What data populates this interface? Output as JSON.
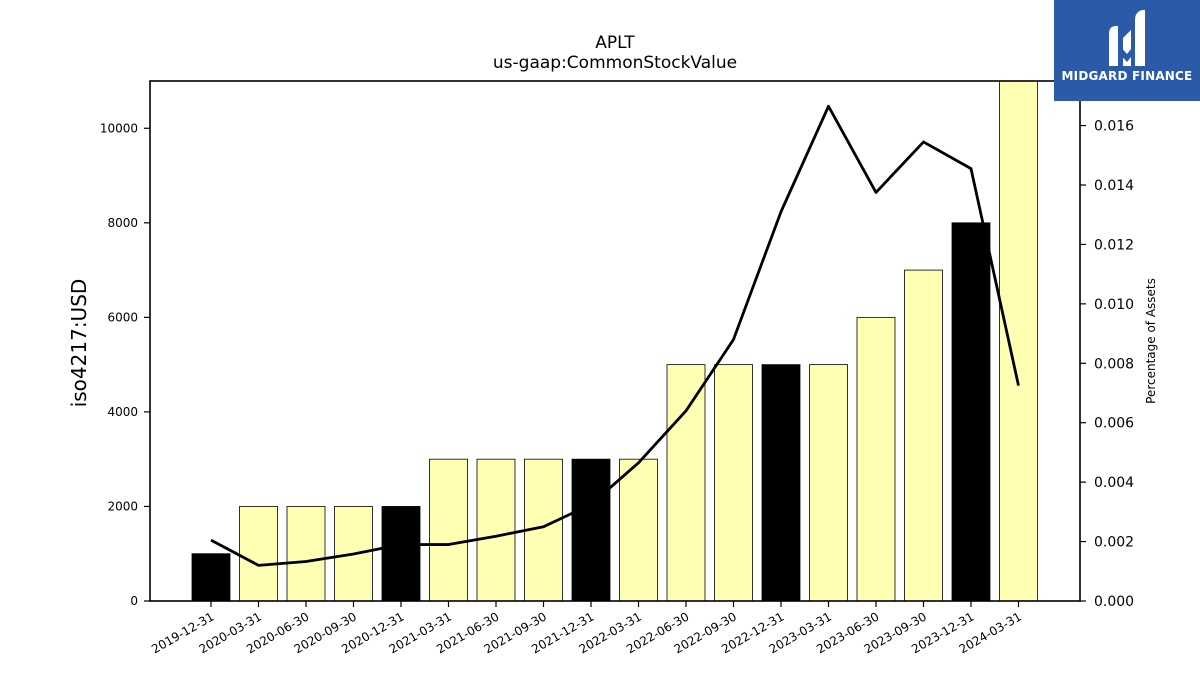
{
  "brand": {
    "name": "MIDGARD FINANCE",
    "color": "#2b5aa9"
  },
  "chart_data": {
    "type": "bar",
    "title": "APLT",
    "subtitle": "us-gaap:CommonStockValue",
    "ylabel": "iso4217:USD",
    "y2label": "Percentage of Assets",
    "categories": [
      "2019-12-31",
      "2020-03-31",
      "2020-06-30",
      "2020-09-30",
      "2020-12-31",
      "2021-03-31",
      "2021-06-30",
      "2021-09-30",
      "2021-12-31",
      "2022-03-31",
      "2022-06-30",
      "2022-09-30",
      "2022-12-31",
      "2023-03-31",
      "2023-06-30",
      "2023-09-30",
      "2023-12-31",
      "2024-03-31"
    ],
    "values": [
      1000,
      2000,
      2000,
      2000,
      2000,
      3000,
      3000,
      3000,
      3000,
      3000,
      5000,
      5000,
      5000,
      5000,
      6000,
      7000,
      8000,
      11000
    ],
    "bar_colors": [
      "#000000",
      "#ffffb3",
      "#ffffb3",
      "#ffffb3",
      "#000000",
      "#ffffb3",
      "#ffffb3",
      "#ffffb3",
      "#000000",
      "#ffffb3",
      "#ffffb3",
      "#ffffb3",
      "#000000",
      "#ffffb3",
      "#ffffb3",
      "#ffffb3",
      "#000000",
      "#ffffb3"
    ],
    "line_values": [
      0.00205,
      0.0012,
      0.00133,
      0.00158,
      0.0019,
      0.0019,
      0.00218,
      0.0025,
      0.00325,
      0.00465,
      0.0064,
      0.0088,
      0.0131,
      0.01665,
      0.01375,
      0.01545,
      0.01455,
      0.00725
    ],
    "line_color": "#000000",
    "ylim": [
      0,
      11000
    ],
    "y2lim": [
      0,
      0.0175
    ],
    "yticks": [
      0,
      2000,
      4000,
      6000,
      8000,
      10000
    ],
    "y2ticks": [
      "0.000",
      "0.002",
      "0.004",
      "0.006",
      "0.008",
      "0.010",
      "0.012",
      "0.014",
      "0.016"
    ],
    "grid": false
  }
}
